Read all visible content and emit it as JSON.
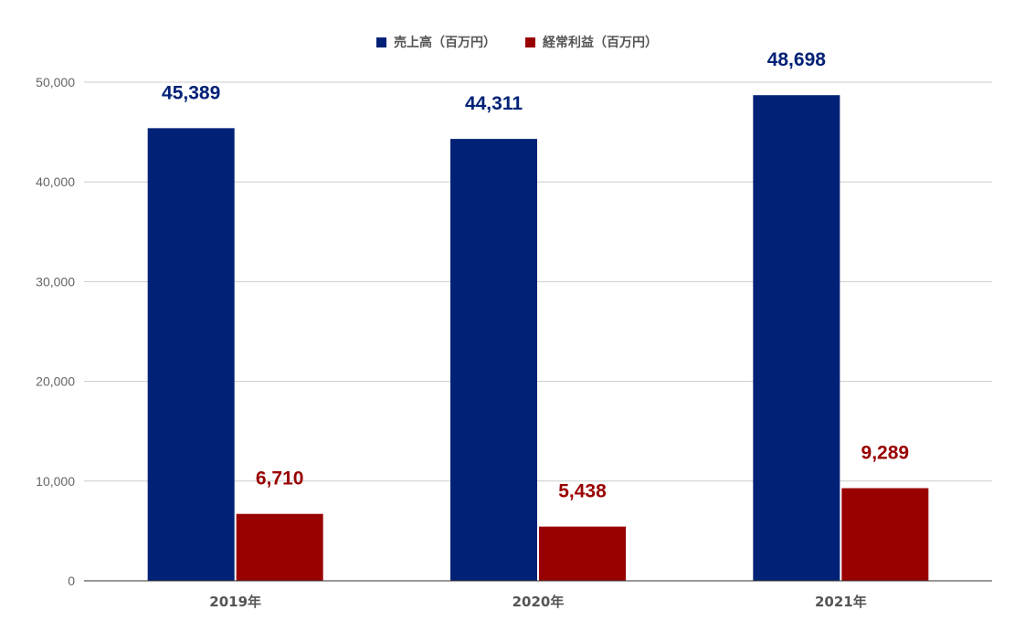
{
  "chart_data": {
    "type": "bar",
    "categories": [
      "2019年",
      "2020年",
      "2021年"
    ],
    "series": [
      {
        "name": "売上高（百万円）",
        "values": [
          45389,
          44311,
          48698
        ],
        "color": "#002176",
        "labels": [
          "45,389",
          "44,311",
          "48,698"
        ]
      },
      {
        "name": "経常利益（百万円）",
        "values": [
          6710,
          5438,
          9289
        ],
        "color": "#990000",
        "labels": [
          "6,710",
          "5,438",
          "9,289"
        ]
      }
    ],
    "title": "",
    "xlabel": "",
    "ylabel": "",
    "ylim": [
      0,
      50000
    ],
    "yticks": [
      0,
      10000,
      20000,
      30000,
      40000,
      50000
    ],
    "ytick_labels": [
      "0",
      "10,000",
      "20,000",
      "30,000",
      "40,000",
      "50,000"
    ],
    "grid": true,
    "legend_position": "top-center"
  }
}
